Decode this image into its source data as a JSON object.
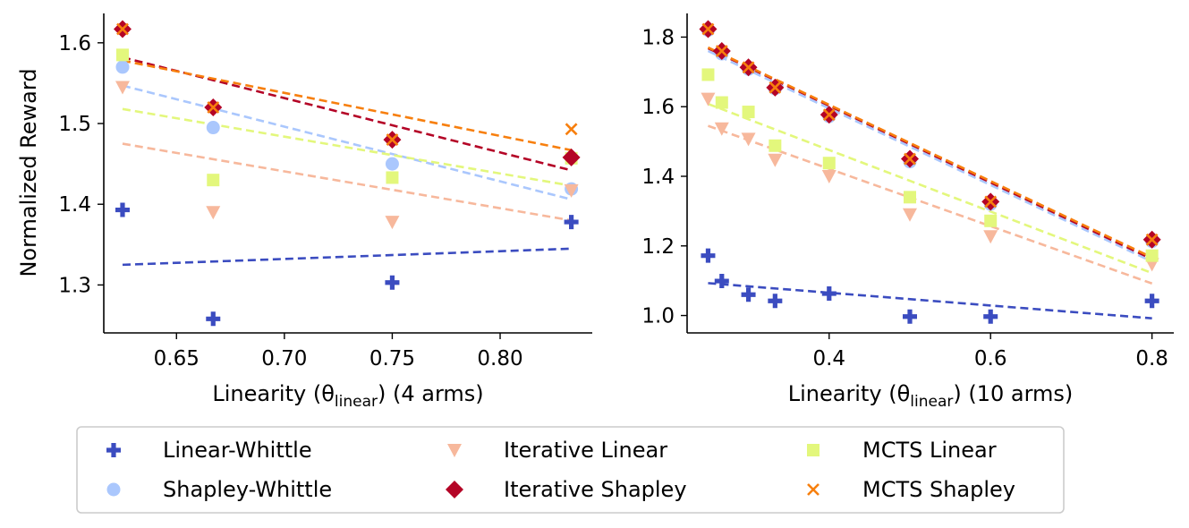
{
  "colors": {
    "linear_whittle": "#3b4cc0",
    "shapley_whittle": "#aac7fd",
    "iterative_linear": "#f7b89c",
    "iterative_shapley": "#b40426",
    "mcts_linear": "#e3f77c",
    "mcts_shapley": "#f77f0e"
  },
  "ylabel": "Normalized Reward",
  "legend": {
    "linear_whittle": "Linear-Whittle",
    "shapley_whittle": "Shapley-Whittle",
    "iterative_linear": "Iterative Linear",
    "iterative_shapley": "Iterative Shapley",
    "mcts_linear": "MCTS Linear",
    "mcts_shapley": "MCTS Shapley"
  },
  "chart_data": [
    {
      "type": "scatter",
      "title": "",
      "xlabel": {
        "main": "Linearity (θ",
        "sub": "linear",
        "tail": ") (4 arms)"
      },
      "ylabel": "Normalized Reward",
      "xlim": [
        0.6163,
        0.8427
      ],
      "ylim": [
        1.2406,
        1.6364
      ],
      "xticks": [
        0.65,
        0.7,
        0.75,
        0.8
      ],
      "xtick_labels": [
        "0.65",
        "0.70",
        "0.75",
        "0.80"
      ],
      "yticks": [
        1.3,
        1.4,
        1.5,
        1.6
      ],
      "ytick_labels": [
        "1.3",
        "1.4",
        "1.5",
        "1.6"
      ],
      "grid": false,
      "series": [
        {
          "key": "linear_whittle",
          "name": "Linear-Whittle",
          "marker": "plus",
          "color": "#3b4cc0",
          "x": [
            0.625,
            0.667,
            0.75,
            0.833
          ],
          "y": [
            1.393,
            1.258,
            1.303,
            1.378
          ],
          "trend": {
            "x": [
              0.625,
              0.833
            ],
            "y": [
              1.325,
              1.345
            ]
          }
        },
        {
          "key": "shapley_whittle",
          "name": "Shapley-Whittle",
          "marker": "circle",
          "color": "#aac7fd",
          "x": [
            0.625,
            0.667,
            0.75,
            0.833
          ],
          "y": [
            1.57,
            1.495,
            1.45,
            1.419
          ],
          "trend": {
            "x": [
              0.625,
              0.833
            ],
            "y": [
              1.547,
              1.406
            ]
          }
        },
        {
          "key": "iterative_linear",
          "name": "Iterative Linear",
          "marker": "triangle-down",
          "color": "#f7b89c",
          "x": [
            0.625,
            0.667,
            0.75,
            0.833
          ],
          "y": [
            1.545,
            1.39,
            1.378,
            1.417
          ],
          "trend": {
            "x": [
              0.625,
              0.833
            ],
            "y": [
              1.475,
              1.38
            ]
          }
        },
        {
          "key": "mcts_linear",
          "name": "MCTS Linear",
          "marker": "square",
          "color": "#e3f77c",
          "x": [
            0.625,
            0.667,
            0.75,
            0.833
          ],
          "y": [
            1.585,
            1.43,
            1.433,
            1.457
          ],
          "trend": {
            "x": [
              0.625,
              0.833
            ],
            "y": [
              1.518,
              1.423
            ]
          }
        },
        {
          "key": "iterative_shapley",
          "name": "Iterative Shapley",
          "marker": "diamond",
          "color": "#b40426",
          "x": [
            0.625,
            0.667,
            0.75,
            0.833
          ],
          "y": [
            1.617,
            1.52,
            1.48,
            1.458
          ],
          "trend": {
            "x": [
              0.625,
              0.833
            ],
            "y": [
              1.582,
              1.442
            ]
          }
        },
        {
          "key": "mcts_shapley",
          "name": "MCTS Shapley",
          "marker": "x",
          "color": "#f77f0e",
          "x": [
            0.625,
            0.667,
            0.75,
            0.833
          ],
          "y": [
            1.617,
            1.52,
            1.48,
            1.493
          ],
          "trend": {
            "x": [
              0.625,
              0.833
            ],
            "y": [
              1.578,
              1.467
            ]
          }
        }
      ]
    },
    {
      "type": "scatter",
      "title": "",
      "xlabel": {
        "main": "Linearity (θ",
        "sub": "linear",
        "tail": ") (10 arms)"
      },
      "xlim": [
        0.224,
        0.827
      ],
      "ylim": [
        0.95,
        1.868
      ],
      "xticks": [
        0.4,
        0.6,
        0.8
      ],
      "xtick_labels": [
        "0.4",
        "0.6",
        "0.8"
      ],
      "yticks": [
        1.0,
        1.2,
        1.4,
        1.6,
        1.8
      ],
      "ytick_labels": [
        "1.0",
        "1.2",
        "1.4",
        "1.6",
        "1.8"
      ],
      "grid": false,
      "series": [
        {
          "key": "linear_whittle",
          "name": "Linear-Whittle",
          "marker": "plus",
          "color": "#3b4cc0",
          "x": [
            0.25,
            0.267,
            0.3,
            0.333,
            0.4,
            0.5,
            0.6,
            0.8
          ],
          "y": [
            1.172,
            1.099,
            1.06,
            1.042,
            1.063,
            0.997,
            0.997,
            1.042
          ],
          "trend": {
            "x": [
              0.25,
              0.8
            ],
            "y": [
              1.093,
              0.992
            ]
          }
        },
        {
          "key": "shapley_whittle",
          "name": "Shapley-Whittle",
          "marker": "circle",
          "color": "#aac7fd",
          "x": [
            0.25,
            0.267,
            0.3,
            0.333,
            0.4,
            0.5,
            0.6,
            0.8
          ],
          "y": [
            1.82,
            1.752,
            1.708,
            1.652,
            1.572,
            1.442,
            1.32,
            1.213
          ],
          "trend": {
            "x": [
              0.25,
              0.8
            ],
            "y": [
              1.76,
              1.155
            ]
          }
        },
        {
          "key": "iterative_linear",
          "name": "Iterative Linear",
          "marker": "triangle-down",
          "color": "#f7b89c",
          "x": [
            0.25,
            0.267,
            0.3,
            0.333,
            0.4,
            0.5,
            0.6,
            0.8
          ],
          "y": [
            1.622,
            1.537,
            1.507,
            1.447,
            1.4,
            1.29,
            1.227,
            1.147
          ],
          "trend": {
            "x": [
              0.25,
              0.8
            ],
            "y": [
              1.545,
              1.092
            ]
          }
        },
        {
          "key": "mcts_linear",
          "name": "MCTS Linear",
          "marker": "square",
          "color": "#e3f77c",
          "x": [
            0.25,
            0.267,
            0.3,
            0.333,
            0.4,
            0.5,
            0.6,
            0.8
          ],
          "y": [
            1.692,
            1.612,
            1.585,
            1.488,
            1.438,
            1.34,
            1.272,
            1.172
          ],
          "trend": {
            "x": [
              0.25,
              0.8
            ],
            "y": [
              1.608,
              1.122
            ]
          }
        },
        {
          "key": "iterative_shapley",
          "name": "Iterative Shapley",
          "marker": "diamond",
          "color": "#b40426",
          "x": [
            0.25,
            0.267,
            0.3,
            0.333,
            0.4,
            0.5,
            0.6,
            0.8
          ],
          "y": [
            1.823,
            1.76,
            1.713,
            1.655,
            1.577,
            1.45,
            1.327,
            1.218
          ],
          "trend": {
            "x": [
              0.25,
              0.8
            ],
            "y": [
              1.768,
              1.162
            ]
          }
        },
        {
          "key": "mcts_shapley",
          "name": "MCTS Shapley",
          "marker": "x",
          "color": "#f77f0e",
          "x": [
            0.25,
            0.267,
            0.3,
            0.333,
            0.4,
            0.5,
            0.6,
            0.8
          ],
          "y": [
            1.823,
            1.76,
            1.713,
            1.655,
            1.577,
            1.45,
            1.327,
            1.218
          ],
          "trend": {
            "x": [
              0.25,
              0.8
            ],
            "y": [
              1.77,
              1.167
            ]
          }
        }
      ]
    }
  ]
}
